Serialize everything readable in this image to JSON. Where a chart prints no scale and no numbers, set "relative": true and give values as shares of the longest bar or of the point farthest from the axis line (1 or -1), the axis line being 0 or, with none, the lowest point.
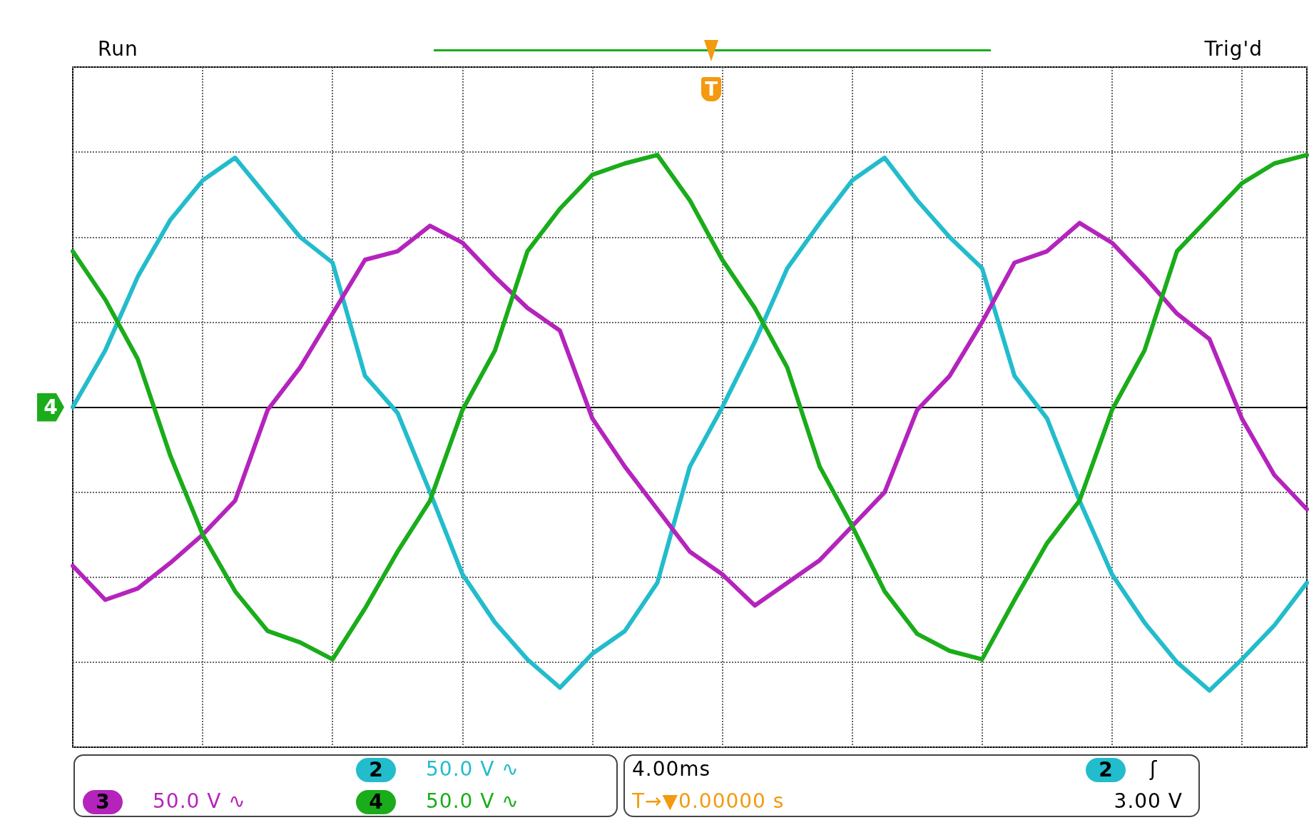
{
  "chart_data": {
    "type": "line",
    "relative": true,
    "grid": true,
    "legend": "bottom",
    "line_style": "solid",
    "categories": [
      null,
      null,
      null,
      null,
      null,
      null,
      null,
      null,
      null,
      null,
      null,
      null,
      null,
      null,
      null,
      null,
      null,
      null,
      null,
      null,
      null,
      null,
      null,
      null,
      null,
      null,
      null,
      null,
      null,
      null,
      null,
      null,
      null,
      null,
      null,
      null,
      null,
      null,
      null
    ],
    "series": [
      {
        "name": "2",
        "color": "#22bccc",
        "values": [
          0,
          0.2,
          0.46,
          0.66,
          0.8,
          0.88,
          0.74,
          0.6,
          0.51,
          0.11,
          -0.02,
          -0.3,
          -0.59,
          -0.76,
          -0.89,
          -0.99,
          -0.87,
          -0.79,
          -0.62,
          -0.21,
          0,
          0.23,
          0.49,
          0.65,
          0.8,
          0.88,
          0.73,
          0.6,
          0.49,
          0.11,
          -0.04,
          -0.33,
          -0.59,
          -0.76,
          -0.9,
          -1,
          -0.89,
          -0.77,
          -0.62
        ]
      },
      {
        "name": "3",
        "color": "#b424bc",
        "values": [
          -0.56,
          -0.68,
          -0.64,
          -0.55,
          -0.45,
          -0.33,
          -0.01,
          0.14,
          0.33,
          0.52,
          0.55,
          0.64,
          0.58,
          0.46,
          0.35,
          0.27,
          -0.04,
          -0.21,
          -0.36,
          -0.51,
          -0.59,
          -0.7,
          -0.62,
          -0.54,
          -0.42,
          -0.3,
          -0.01,
          0.11,
          0.3,
          0.51,
          0.55,
          0.65,
          0.58,
          0.46,
          0.33,
          0.24,
          -0.04,
          -0.24,
          -0.36
        ]
      },
      {
        "name": "4",
        "color": "#1aac1a",
        "values": [
          0.55,
          0.38,
          0.17,
          -0.17,
          -0.45,
          -0.65,
          -0.79,
          -0.83,
          -0.89,
          -0.71,
          -0.51,
          -0.33,
          -0.01,
          0.2,
          0.55,
          0.7,
          0.82,
          0.86,
          0.89,
          0.73,
          0.52,
          0.35,
          0.14,
          -0.21,
          -0.42,
          -0.65,
          -0.8,
          -0.86,
          -0.89,
          -0.68,
          -0.48,
          -0.33,
          -0.01,
          0.2,
          0.55,
          0.67,
          0.79,
          0.86,
          0.89
        ]
      }
    ],
    "annotations": [
      "Run",
      "Trig'd",
      "T",
      "50.0 V  ∿",
      "50.0 V  ∿",
      "50.0 V  ∿",
      "4.00ms",
      "T→▼0.00000 s",
      "2",
      "ʃ",
      "3.00 V"
    ]
  }
}
